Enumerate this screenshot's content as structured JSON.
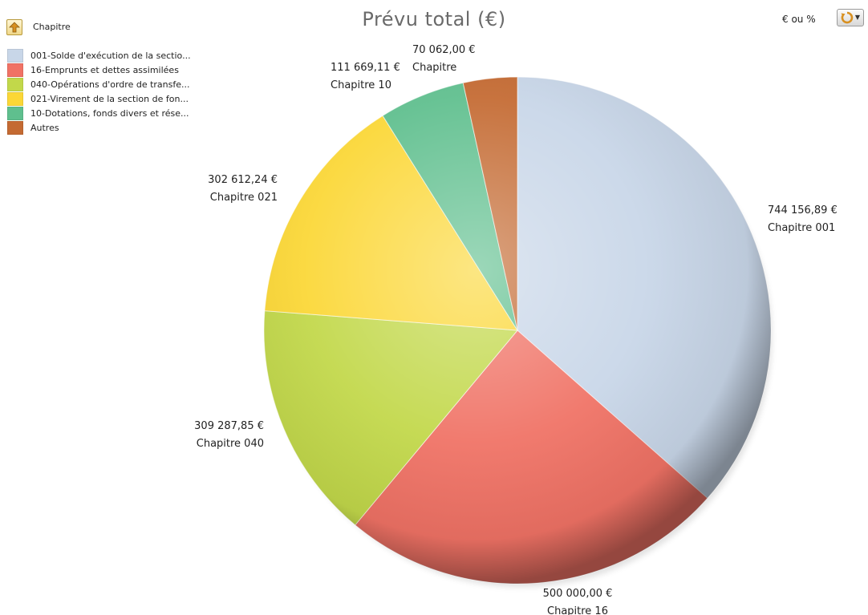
{
  "header": {
    "up_icon": "up-arrow-icon",
    "legend_title": "Chapitre",
    "unit_toggle": "€ ou %",
    "menu_icon": "refresh-dropdown-icon"
  },
  "chart_data": {
    "type": "pie",
    "title": "Prévu total (€)",
    "legend_position": "top-left",
    "slices": [
      {
        "legend": "001-Solde d'exécution de la sectio...",
        "value": 744156.89,
        "value_label": "744 156,89 €",
        "category": "Chapitre 001",
        "color": "#c8d6e8"
      },
      {
        "legend": "16-Emprunts et dettes assimilées",
        "value": 500000.0,
        "value_label": "500 000,00 €",
        "category": "Chapitre 16",
        "color": "#f07265"
      },
      {
        "legend": "040-Opérations d'ordre de transfe...",
        "value": 309287.85,
        "value_label": "309 287,85 €",
        "category": "Chapitre 040",
        "color": "#c2d84a"
      },
      {
        "legend": "021-Virement de la section de fon...",
        "value": 302612.24,
        "value_label": "302 612,24 €",
        "category": "Chapitre 021",
        "color": "#fbd736"
      },
      {
        "legend": "10-Dotations, fonds divers et rése...",
        "value": 111669.11,
        "value_label": "111 669,11 €",
        "category": "Chapitre 10",
        "color": "#5fbf8e"
      },
      {
        "legend": "Autres",
        "value": 70062.0,
        "value_label": "70 062,00 €",
        "category": "Chapitre",
        "color": "#c46a32"
      }
    ]
  }
}
